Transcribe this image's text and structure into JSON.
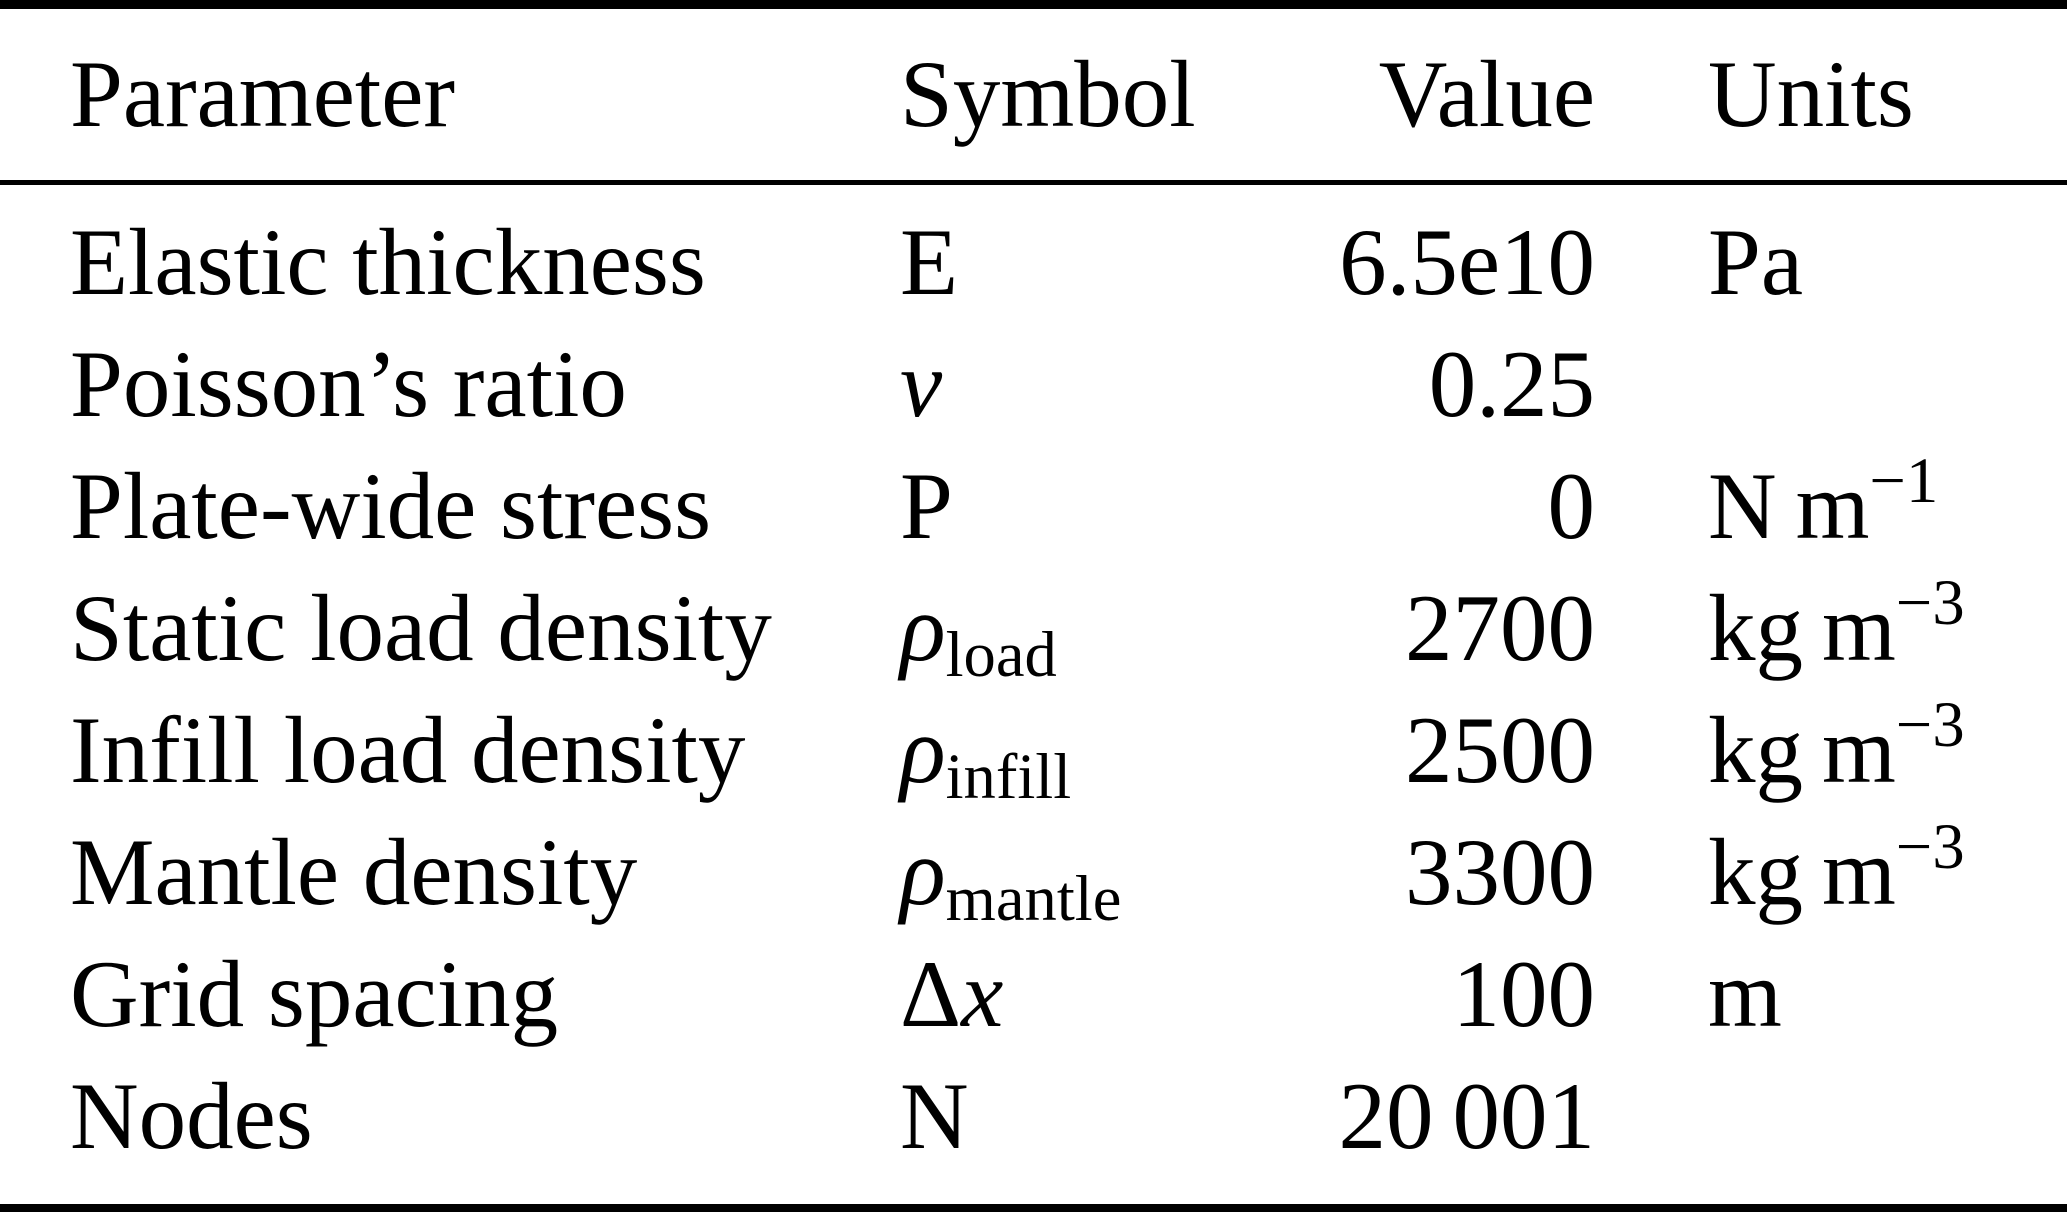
{
  "table": {
    "headers": {
      "parameter": "Parameter",
      "symbol": "Symbol",
      "value": "Value",
      "units": "Units"
    },
    "rows": [
      {
        "parameter": "Elastic thickness",
        "sym_roman": "E",
        "sym_italic": "",
        "sym_sub": "",
        "value": "6.5e10",
        "unit_base": "Pa",
        "unit_sup": ""
      },
      {
        "parameter": "Poisson’s ratio",
        "sym_roman": "",
        "sym_italic": "ν",
        "sym_sub": "",
        "value": "0.25",
        "unit_base": "",
        "unit_sup": ""
      },
      {
        "parameter": "Plate-wide stress",
        "sym_roman": "P",
        "sym_italic": "",
        "sym_sub": "",
        "value": "0",
        "unit_base": "N m",
        "unit_sup": "−1"
      },
      {
        "parameter": "Static load density",
        "sym_roman": "",
        "sym_italic": "ρ",
        "sym_sub": "load",
        "value": "2700",
        "unit_base": "kg m",
        "unit_sup": "−3"
      },
      {
        "parameter": "Infill load density",
        "sym_roman": "",
        "sym_italic": "ρ",
        "sym_sub": "infill",
        "value": "2500",
        "unit_base": "kg m",
        "unit_sup": "−3"
      },
      {
        "parameter": "Mantle density",
        "sym_roman": "",
        "sym_italic": "ρ",
        "sym_sub": "mantle",
        "value": "3300",
        "unit_base": "kg m",
        "unit_sup": "−3"
      },
      {
        "parameter": "Grid spacing",
        "sym_roman": "Δ",
        "sym_italic": "x",
        "sym_sub": "",
        "value": "100",
        "unit_base": "m",
        "unit_sup": ""
      },
      {
        "parameter": "Nodes",
        "sym_roman": "N",
        "sym_italic": "",
        "sym_sub": "",
        "value": "20 001",
        "unit_base": "",
        "unit_sup": ""
      }
    ]
  },
  "colors": {
    "text": "#000000",
    "background": "#ffffff",
    "rule": "#000000"
  }
}
